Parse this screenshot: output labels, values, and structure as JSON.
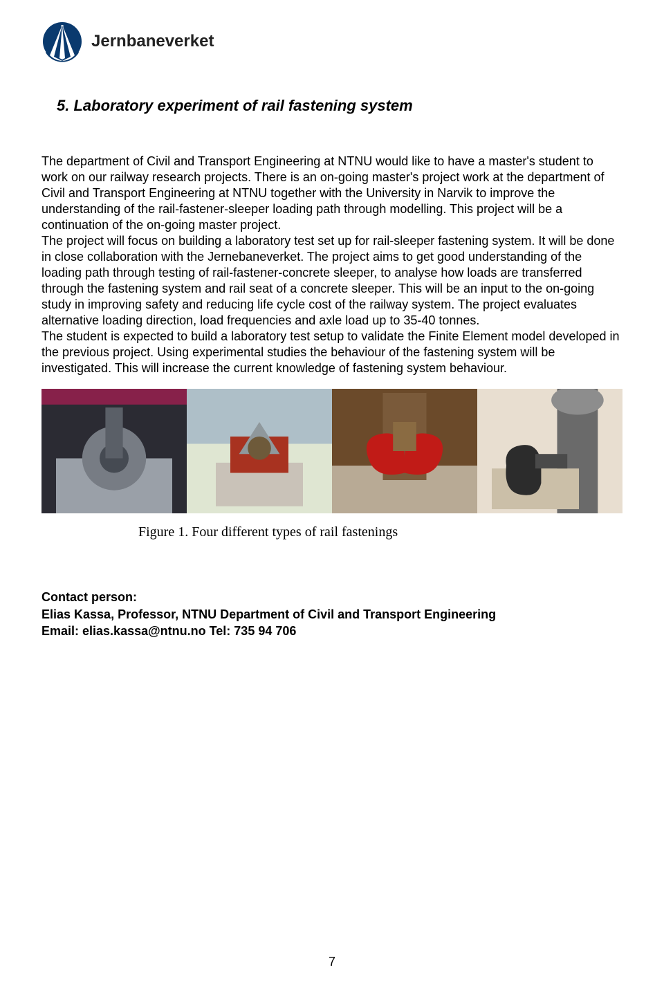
{
  "header": {
    "brand": "Jernbaneverket",
    "logo_colors": {
      "dark": "#0a3a6e",
      "white": "#ffffff"
    }
  },
  "title": "5. Laboratory experiment of rail fastening system",
  "body": "The department of Civil and Transport Engineering at NTNU would like to have a master's student to work on our railway research projects. There is an on-going master's project work at the department of Civil and Transport Engineering at NTNU together with the University in Narvik to improve the understanding of the rail-fastener-sleeper loading path through modelling. This project will be a continuation of the on-going master project.\nThe project will focus on building a laboratory test set up for rail-sleeper fastening system. It will be done in close collaboration with the Jernebaneverket. The project aims to get good understanding of the loading path through testing of rail-fastener-concrete sleeper, to analyse how loads are transferred through the fastening system and rail seat of a concrete sleeper. This will be an input to the on-going study in improving safety and reducing life cycle cost of the railway system. The project evaluates alternative loading direction, load frequencies and axle load up to 35-40 tonnes.\nThe student is expected to build a laboratory test setup to validate the Finite Element model developed in the previous project. Using experimental studies the behaviour of the fastening system will be investigated. This will increase the current knowledge of fastening system behaviour.",
  "figure": {
    "caption": "Figure 1. Four different types of rail fastenings",
    "thumbs": [
      {
        "bg": "#2b2b33",
        "accent": "#c41a5a",
        "steel": "#9aa0a8"
      },
      {
        "bg": "#dfe6d2",
        "accent": "#a83220",
        "steel": "#8f989c",
        "sky": "#aebfc8"
      },
      {
        "bg": "#6b4a2a",
        "accent": "#c11b17",
        "steel": "#b8aa95"
      },
      {
        "bg": "#e8ded0",
        "accent": "#2c2c2c",
        "steel": "#6a6a6a"
      }
    ]
  },
  "contact": {
    "heading": "Contact person:",
    "line1": "Elias Kassa, Professor, NTNU Department of Civil and Transport Engineering",
    "line2": "Email: elias.kassa@ntnu.no Tel: 735 94 706"
  },
  "page_number": "7",
  "colors": {
    "text": "#000000",
    "background": "#ffffff"
  },
  "fonts": {
    "body_family": "Arial",
    "body_size_pt": 13,
    "title_size_pt": 16,
    "caption_family": "Times New Roman",
    "caption_size_pt": 15
  }
}
